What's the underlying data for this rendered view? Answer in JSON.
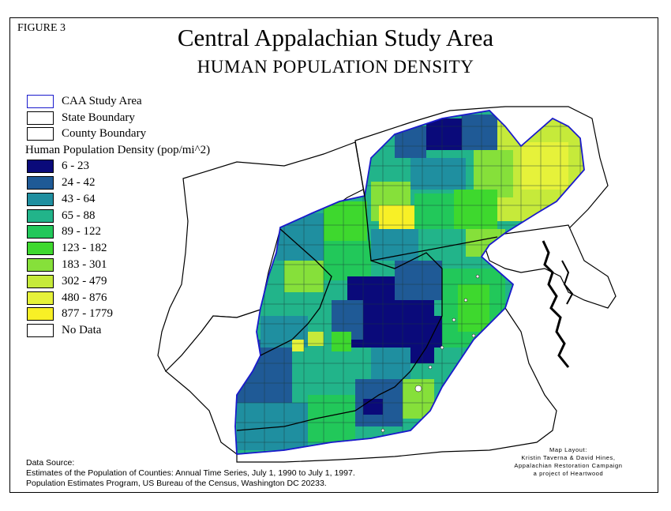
{
  "figure_label": "FIGURE 3",
  "title": "Central Appalachian Study Area",
  "subtitle": "HUMAN POPULATION DENSITY",
  "legend": {
    "boundaries": [
      {
        "label": "CAA Study Area",
        "border": "#1a1acc"
      },
      {
        "label": "State Boundary",
        "border": "#000000"
      },
      {
        "label": "County Boundary",
        "border": "#000000"
      }
    ],
    "heading": "Human Population Density (pop/mi^2)",
    "classes": [
      {
        "label": "6 - 23",
        "color": "#0a0a7a"
      },
      {
        "label": "24 - 42",
        "color": "#1f5a96"
      },
      {
        "label": "43 - 64",
        "color": "#1f8fa0"
      },
      {
        "label": "65 - 88",
        "color": "#22b48a"
      },
      {
        "label": "89 - 122",
        "color": "#22c85a"
      },
      {
        "label": "123 - 182",
        "color": "#3ed82e"
      },
      {
        "label": "183 - 301",
        "color": "#86e03a"
      },
      {
        "label": "302 - 479",
        "color": "#c6ea3a"
      },
      {
        "label": "480 - 876",
        "color": "#e6f23a"
      },
      {
        "label": "877 - 1779",
        "color": "#f8f026"
      },
      {
        "label": "No Data",
        "color": "#ffffff"
      }
    ]
  },
  "source": {
    "line1": "Data Source:",
    "line2": "Estimates of the Population of Counties: Annual Time Series, July 1, 1990 to July 1, 1997.",
    "line3": "Population Estimates Program, US Bureau of the Census, Washington DC 20233."
  },
  "layout_credit": {
    "line1": "Map Layout:",
    "line2": "Kristin Taverna &  David Hines,",
    "line3": "Appalachian Restoration Campaign",
    "line4": "a project of Heartwood"
  }
}
